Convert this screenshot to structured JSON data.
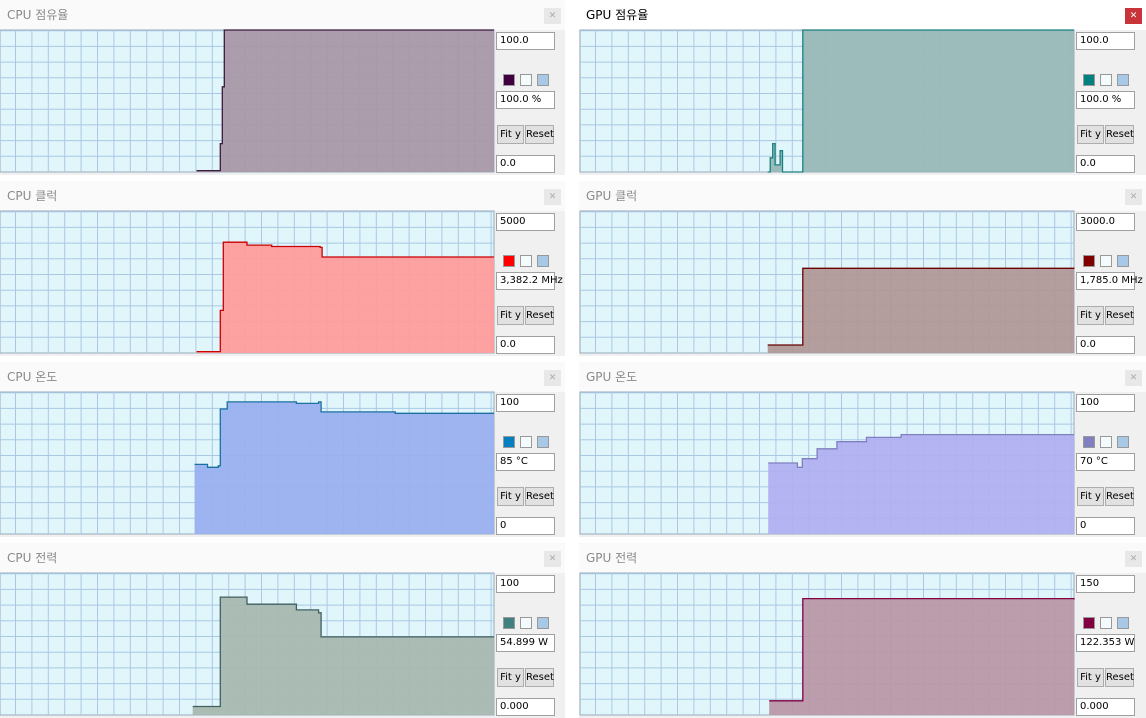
{
  "buttons": {
    "fit": "Fit y",
    "reset": "Reset"
  },
  "panels": [
    {
      "title": "CPU 점유율",
      "max_label": "100.0",
      "current": "100.0 %",
      "min_label": "0.0",
      "color": "#400040",
      "line": "#3c1a3c",
      "fill": "#a898a8",
      "ylim": [
        0,
        100
      ],
      "xlim": [
        0,
        100
      ],
      "x": [
        39.8,
        44.2,
        44.6,
        45,
        45.4,
        100
      ],
      "values": [
        1,
        1,
        20,
        60,
        100,
        100
      ]
    },
    {
      "title": "GPU 점유율",
      "active": true,
      "max_label": "100.0",
      "current": "100.0 %",
      "min_label": "0.0",
      "color": "#008080",
      "line": "#1a8080",
      "fill": "#98b8b8",
      "ylim": [
        0,
        100
      ],
      "xlim": [
        0,
        100
      ],
      "x": [
        38,
        38.5,
        39,
        39.5,
        40.5,
        41,
        44.9,
        45.1,
        100
      ],
      "values": [
        0,
        10,
        20,
        5,
        15,
        0,
        0,
        100,
        100
      ]
    },
    {
      "title": "CPU 클럭",
      "max_label": "5000",
      "current": "3,382.2 MHz",
      "min_label": "0.0",
      "color": "#ff0000",
      "line": "#cc0000",
      "fill": "#ff9c9c",
      "ylim": [
        0,
        5000
      ],
      "xlim": [
        0,
        100
      ],
      "x": [
        39.8,
        44.2,
        44.6,
        45.2,
        50,
        55,
        64.8,
        65.2,
        100
      ],
      "values": [
        50,
        50,
        1500,
        3900,
        3800,
        3750,
        3720,
        3382,
        3382
      ]
    },
    {
      "title": "GPU 클럭",
      "max_label": "3000.0",
      "current": "1,785.0 MHz",
      "min_label": "0.0",
      "color": "#800000",
      "line": "#6a0000",
      "fill": "#b09898",
      "ylim": [
        0,
        3000
      ],
      "xlim": [
        0,
        100
      ],
      "x": [
        38,
        45,
        45.1,
        100
      ],
      "values": [
        170,
        170,
        1790,
        1785
      ]
    },
    {
      "title": "CPU 온도",
      "max_label": "100",
      "current": "85 °C",
      "min_label": "0",
      "color": "#0080c0",
      "line": "#1a70a0",
      "fill": "#99b0f0",
      "ylim": [
        0,
        100
      ],
      "xlim": [
        0,
        100
      ],
      "x": [
        39.4,
        42,
        44.2,
        44.6,
        46,
        60,
        64.5,
        65,
        80,
        100
      ],
      "values": [
        49,
        47,
        48,
        88,
        93,
        92,
        93,
        86,
        85,
        85
      ]
    },
    {
      "title": "GPU 온도",
      "max_label": "100",
      "current": "70 °C",
      "min_label": "0",
      "color": "#8080c0",
      "line": "#8080c0",
      "fill": "#b0b0f0",
      "ylim": [
        0,
        100
      ],
      "xlim": [
        0,
        100
      ],
      "x": [
        38.1,
        44,
        45,
        48,
        52,
        58,
        65,
        100
      ],
      "values": [
        50,
        47,
        53,
        60,
        65,
        68,
        70,
        70
      ]
    },
    {
      "title": "CPU 전력",
      "max_label": "100",
      "current": "54.899 W",
      "min_label": "0.000",
      "color": "#408080",
      "line": "#406060",
      "fill": "#a8b8b0",
      "ylim": [
        0,
        100
      ],
      "xlim": [
        0,
        100
      ],
      "x": [
        39,
        44,
        44.6,
        50,
        60,
        64.5,
        65,
        100
      ],
      "values": [
        6,
        6,
        83,
        78,
        74,
        72,
        55,
        55
      ]
    },
    {
      "title": "GPU 전력",
      "max_label": "150",
      "current": "122.353 W",
      "min_label": "0.000",
      "color": "#800040",
      "line": "#800040",
      "fill": "#b898a8",
      "ylim": [
        0,
        150
      ],
      "xlim": [
        0,
        100
      ],
      "x": [
        38.3,
        45,
        45.1,
        100
      ],
      "values": [
        15,
        15,
        123,
        122
      ]
    }
  ]
}
